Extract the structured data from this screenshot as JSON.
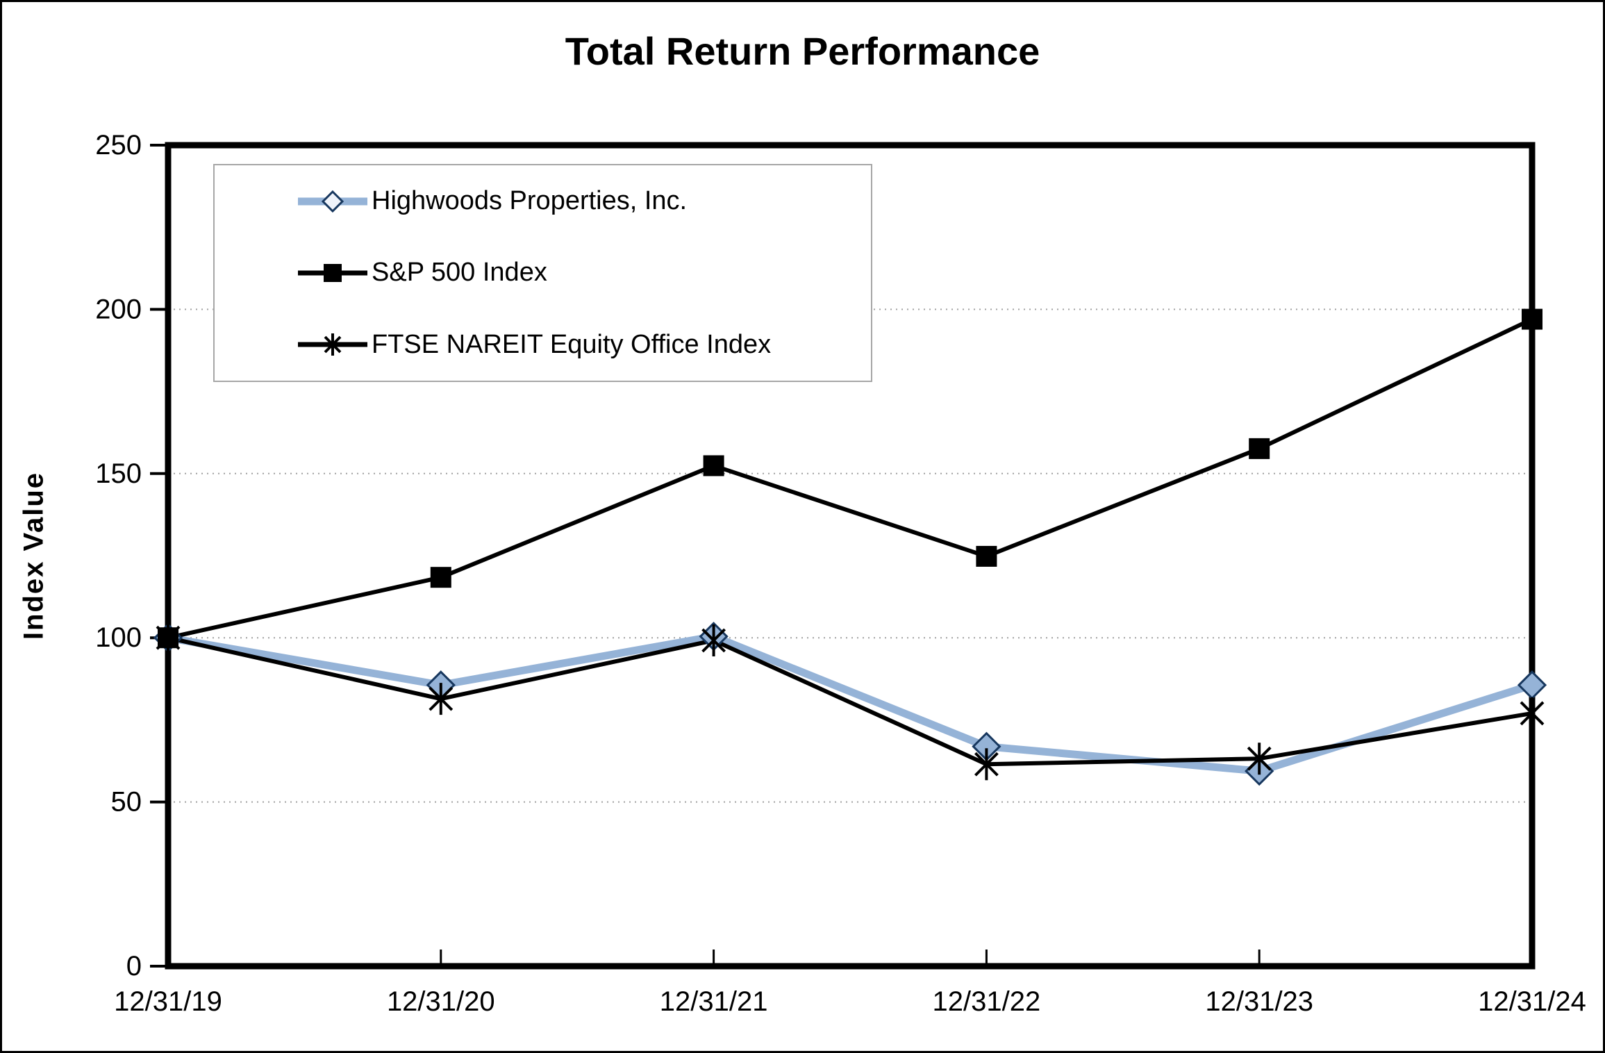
{
  "chart_data": {
    "type": "line",
    "title": "Total Return Performance",
    "xlabel": "",
    "ylabel": "Index Value",
    "categories": [
      "12/31/19",
      "12/31/20",
      "12/31/21",
      "12/31/22",
      "12/31/23",
      "12/31/24"
    ],
    "series": [
      {
        "name": "Highwoods Properties, Inc.",
        "marker": "diamond",
        "color": "#95B3D7",
        "marker_fill": "#95B3D7",
        "marker_stroke": "#17375E",
        "values": [
          100,
          85.6,
          100.4,
          66.9,
          59.4,
          85.6
        ]
      },
      {
        "name": "S&P 500 Index",
        "marker": "square",
        "color": "#000000",
        "marker_fill": "#000000",
        "marker_stroke": "#000000",
        "values": [
          100,
          118.4,
          152.4,
          124.8,
          157.6,
          197.0
        ]
      },
      {
        "name": "FTSE NAREIT Equity Office Index",
        "marker": "asterisk",
        "color": "#000000",
        "marker_fill": "#000000",
        "marker_stroke": "#000000",
        "values": [
          100,
          81.4,
          99.2,
          61.5,
          63.2,
          77.0
        ]
      }
    ],
    "ylim": [
      0,
      250
    ],
    "yticks": [
      0,
      50,
      100,
      150,
      200,
      250
    ],
    "grid": "horizontal-dotted",
    "legend_position": "top-left-inside"
  },
  "colors": {
    "gridline": "#A0A0A0",
    "axis": "#000000",
    "legend_border": "#A6A6A6",
    "background": "#FFFFFF",
    "legend_diamond_fill": "#EFF3FA"
  }
}
